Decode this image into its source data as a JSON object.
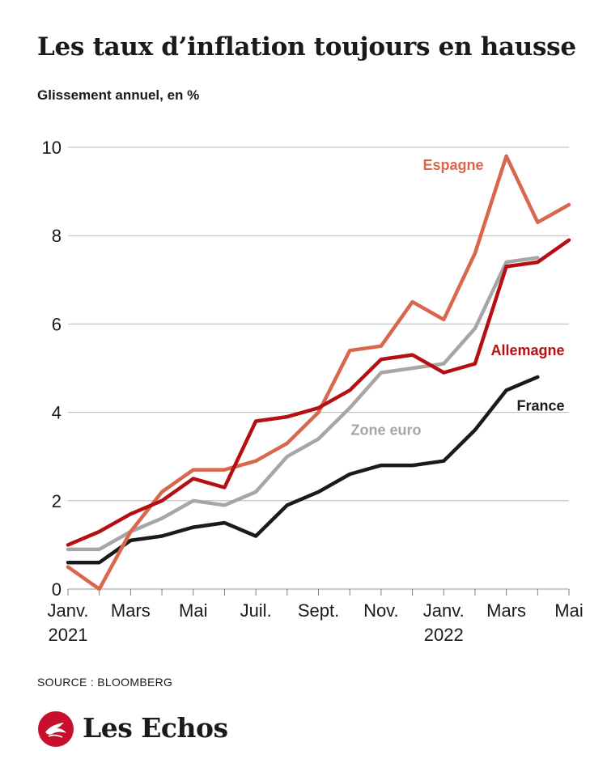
{
  "title": "Les taux d’inflation toujours en hausse",
  "subtitle": "Glissement annuel, en %",
  "source": "SOURCE : BLOOMBERG",
  "brand": "Les Echos",
  "colors": {
    "espagne": "#d8674d",
    "allemagne": "#b50f12",
    "zone_euro": "#a6a6a6",
    "france": "#1a1a1a",
    "grid": "#b9b9b9",
    "brand_red": "#c8102e"
  },
  "chart_data": {
    "type": "line",
    "title": "Les taux d’inflation toujours en hausse",
    "ylabel": "Glissement annuel, en %",
    "xlabel": "",
    "ylim": [
      0,
      10
    ],
    "yticks": [
      0,
      2,
      4,
      6,
      8,
      10
    ],
    "grid": true,
    "x": [
      "2021-01",
      "2021-02",
      "2021-03",
      "2021-04",
      "2021-05",
      "2021-06",
      "2021-07",
      "2021-08",
      "2021-09",
      "2021-10",
      "2021-11",
      "2021-12",
      "2022-01",
      "2022-02",
      "2022-03",
      "2022-04",
      "2022-05"
    ],
    "xtick_labels": [
      {
        "index": 0,
        "label": "Janv.",
        "year": "2021"
      },
      {
        "index": 2,
        "label": "Mars"
      },
      {
        "index": 4,
        "label": "Mai"
      },
      {
        "index": 6,
        "label": "Juil."
      },
      {
        "index": 8,
        "label": "Sept."
      },
      {
        "index": 10,
        "label": "Nov."
      },
      {
        "index": 12,
        "label": "Janv.",
        "year": "2022"
      },
      {
        "index": 14,
        "label": "Mars"
      },
      {
        "index": 16,
        "label": "Mai"
      }
    ],
    "series": [
      {
        "name": "Espagne",
        "key": "espagne",
        "label_at": [
          2022.08,
          9.6
        ],
        "values": [
          0.5,
          0.0,
          1.3,
          2.2,
          2.7,
          2.7,
          2.9,
          3.3,
          4.0,
          5.4,
          5.5,
          6.5,
          6.1,
          7.6,
          9.8,
          8.3,
          8.7
        ]
      },
      {
        "name": "Allemagne",
        "key": "allemagne",
        "label_at": [
          16,
          5.4
        ],
        "values": [
          1.0,
          1.3,
          1.7,
          2.0,
          2.5,
          2.3,
          3.8,
          3.9,
          4.1,
          4.5,
          5.2,
          5.3,
          4.9,
          5.1,
          7.3,
          7.4,
          7.9
        ]
      },
      {
        "name": "Zone euro",
        "key": "zone_euro",
        "label_at": [
          10,
          3.6
        ],
        "values": [
          0.9,
          0.9,
          1.3,
          1.6,
          2.0,
          1.9,
          2.2,
          3.0,
          3.4,
          4.1,
          4.9,
          5.0,
          5.1,
          5.9,
          7.4,
          7.5,
          null
        ]
      },
      {
        "name": "France",
        "key": "france",
        "label_at": [
          16,
          4.15
        ],
        "values": [
          0.6,
          0.6,
          1.1,
          1.2,
          1.4,
          1.5,
          1.2,
          1.9,
          2.2,
          2.6,
          2.8,
          2.8,
          2.9,
          3.6,
          4.5,
          4.8,
          null
        ]
      }
    ]
  }
}
